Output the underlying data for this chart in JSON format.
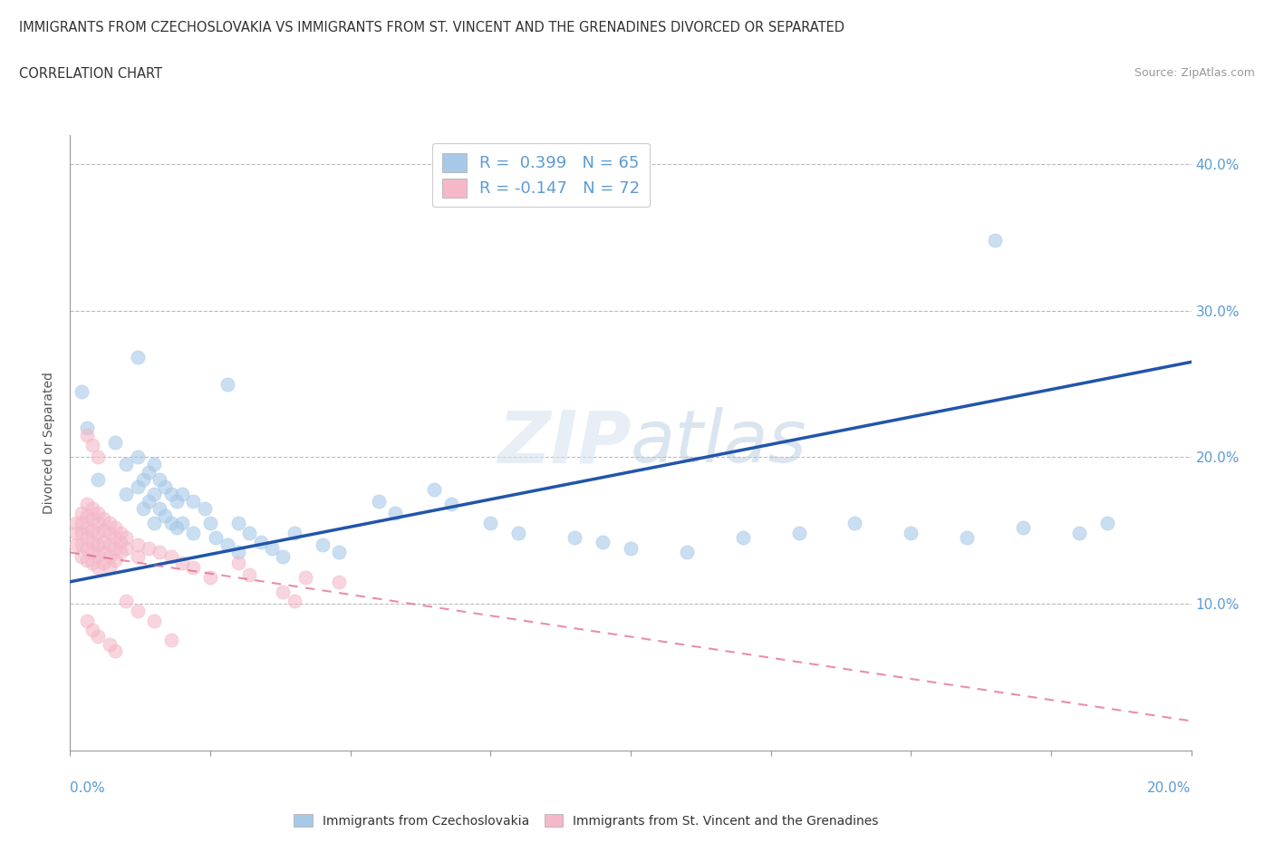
{
  "title": "IMMIGRANTS FROM CZECHOSLOVAKIA VS IMMIGRANTS FROM ST. VINCENT AND THE GRENADINES DIVORCED OR SEPARATED",
  "subtitle": "CORRELATION CHART",
  "source": "Source: ZipAtlas.com",
  "ylabel": "Divorced or Separated",
  "r1": 0.399,
  "n1": 65,
  "r2": -0.147,
  "n2": 72,
  "color_czech": "#a8c8e8",
  "color_vincent": "#f4b8c8",
  "color_czech_line": "#2255aa",
  "color_vincent_line": "#e06080",
  "legend_label1": "Immigrants from Czechoslovakia",
  "legend_label2": "Immigrants from St. Vincent and the Grenadines",
  "xlim": [
    0.0,
    0.2
  ],
  "ylim": [
    0.0,
    0.42
  ],
  "czech_trend": [
    0.0,
    0.2,
    0.115,
    0.265
  ],
  "vincent_trend": [
    0.0,
    0.2,
    0.135,
    0.02
  ],
  "czech_scatter": [
    [
      0.002,
      0.245
    ],
    [
      0.003,
      0.22
    ],
    [
      0.005,
      0.185
    ],
    [
      0.008,
      0.21
    ],
    [
      0.01,
      0.195
    ],
    [
      0.01,
      0.175
    ],
    [
      0.012,
      0.2
    ],
    [
      0.012,
      0.18
    ],
    [
      0.013,
      0.185
    ],
    [
      0.013,
      0.165
    ],
    [
      0.014,
      0.19
    ],
    [
      0.014,
      0.17
    ],
    [
      0.015,
      0.195
    ],
    [
      0.015,
      0.175
    ],
    [
      0.015,
      0.155
    ],
    [
      0.016,
      0.185
    ],
    [
      0.016,
      0.165
    ],
    [
      0.017,
      0.18
    ],
    [
      0.017,
      0.16
    ],
    [
      0.018,
      0.175
    ],
    [
      0.018,
      0.155
    ],
    [
      0.019,
      0.17
    ],
    [
      0.019,
      0.152
    ],
    [
      0.02,
      0.175
    ],
    [
      0.02,
      0.155
    ],
    [
      0.022,
      0.17
    ],
    [
      0.022,
      0.148
    ],
    [
      0.024,
      0.165
    ],
    [
      0.025,
      0.155
    ],
    [
      0.026,
      0.145
    ],
    [
      0.028,
      0.14
    ],
    [
      0.03,
      0.155
    ],
    [
      0.03,
      0.135
    ],
    [
      0.032,
      0.148
    ],
    [
      0.034,
      0.142
    ],
    [
      0.036,
      0.138
    ],
    [
      0.038,
      0.132
    ],
    [
      0.04,
      0.148
    ],
    [
      0.045,
      0.14
    ],
    [
      0.048,
      0.135
    ],
    [
      0.055,
      0.17
    ],
    [
      0.058,
      0.162
    ],
    [
      0.065,
      0.178
    ],
    [
      0.068,
      0.168
    ],
    [
      0.075,
      0.155
    ],
    [
      0.08,
      0.148
    ],
    [
      0.09,
      0.145
    ],
    [
      0.095,
      0.142
    ],
    [
      0.1,
      0.138
    ],
    [
      0.11,
      0.135
    ],
    [
      0.12,
      0.145
    ],
    [
      0.13,
      0.148
    ],
    [
      0.14,
      0.155
    ],
    [
      0.15,
      0.148
    ],
    [
      0.16,
      0.145
    ],
    [
      0.17,
      0.152
    ],
    [
      0.18,
      0.148
    ],
    [
      0.185,
      0.155
    ],
    [
      0.165,
      0.348
    ],
    [
      0.012,
      0.268
    ],
    [
      0.028,
      0.25
    ]
  ],
  "vincent_scatter": [
    [
      0.001,
      0.155
    ],
    [
      0.001,
      0.148
    ],
    [
      0.001,
      0.14
    ],
    [
      0.002,
      0.162
    ],
    [
      0.002,
      0.155
    ],
    [
      0.002,
      0.148
    ],
    [
      0.002,
      0.14
    ],
    [
      0.002,
      0.132
    ],
    [
      0.003,
      0.168
    ],
    [
      0.003,
      0.16
    ],
    [
      0.003,
      0.152
    ],
    [
      0.003,
      0.145
    ],
    [
      0.003,
      0.138
    ],
    [
      0.003,
      0.13
    ],
    [
      0.004,
      0.165
    ],
    [
      0.004,
      0.158
    ],
    [
      0.004,
      0.15
    ],
    [
      0.004,
      0.142
    ],
    [
      0.004,
      0.135
    ],
    [
      0.004,
      0.128
    ],
    [
      0.005,
      0.162
    ],
    [
      0.005,
      0.155
    ],
    [
      0.005,
      0.148
    ],
    [
      0.005,
      0.14
    ],
    [
      0.005,
      0.133
    ],
    [
      0.005,
      0.125
    ],
    [
      0.006,
      0.158
    ],
    [
      0.006,
      0.15
    ],
    [
      0.006,
      0.142
    ],
    [
      0.006,
      0.135
    ],
    [
      0.006,
      0.128
    ],
    [
      0.007,
      0.155
    ],
    [
      0.007,
      0.148
    ],
    [
      0.007,
      0.14
    ],
    [
      0.007,
      0.132
    ],
    [
      0.007,
      0.125
    ],
    [
      0.008,
      0.152
    ],
    [
      0.008,
      0.145
    ],
    [
      0.008,
      0.138
    ],
    [
      0.008,
      0.13
    ],
    [
      0.009,
      0.148
    ],
    [
      0.009,
      0.142
    ],
    [
      0.009,
      0.135
    ],
    [
      0.01,
      0.145
    ],
    [
      0.01,
      0.138
    ],
    [
      0.012,
      0.14
    ],
    [
      0.012,
      0.132
    ],
    [
      0.014,
      0.138
    ],
    [
      0.016,
      0.135
    ],
    [
      0.018,
      0.132
    ],
    [
      0.02,
      0.128
    ],
    [
      0.003,
      0.215
    ],
    [
      0.004,
      0.208
    ],
    [
      0.005,
      0.2
    ],
    [
      0.003,
      0.088
    ],
    [
      0.004,
      0.082
    ],
    [
      0.005,
      0.078
    ],
    [
      0.007,
      0.072
    ],
    [
      0.008,
      0.068
    ],
    [
      0.01,
      0.102
    ],
    [
      0.012,
      0.095
    ],
    [
      0.015,
      0.088
    ],
    [
      0.018,
      0.075
    ],
    [
      0.022,
      0.125
    ],
    [
      0.025,
      0.118
    ],
    [
      0.03,
      0.128
    ],
    [
      0.032,
      0.12
    ],
    [
      0.038,
      0.108
    ],
    [
      0.04,
      0.102
    ],
    [
      0.042,
      0.118
    ],
    [
      0.048,
      0.115
    ]
  ]
}
